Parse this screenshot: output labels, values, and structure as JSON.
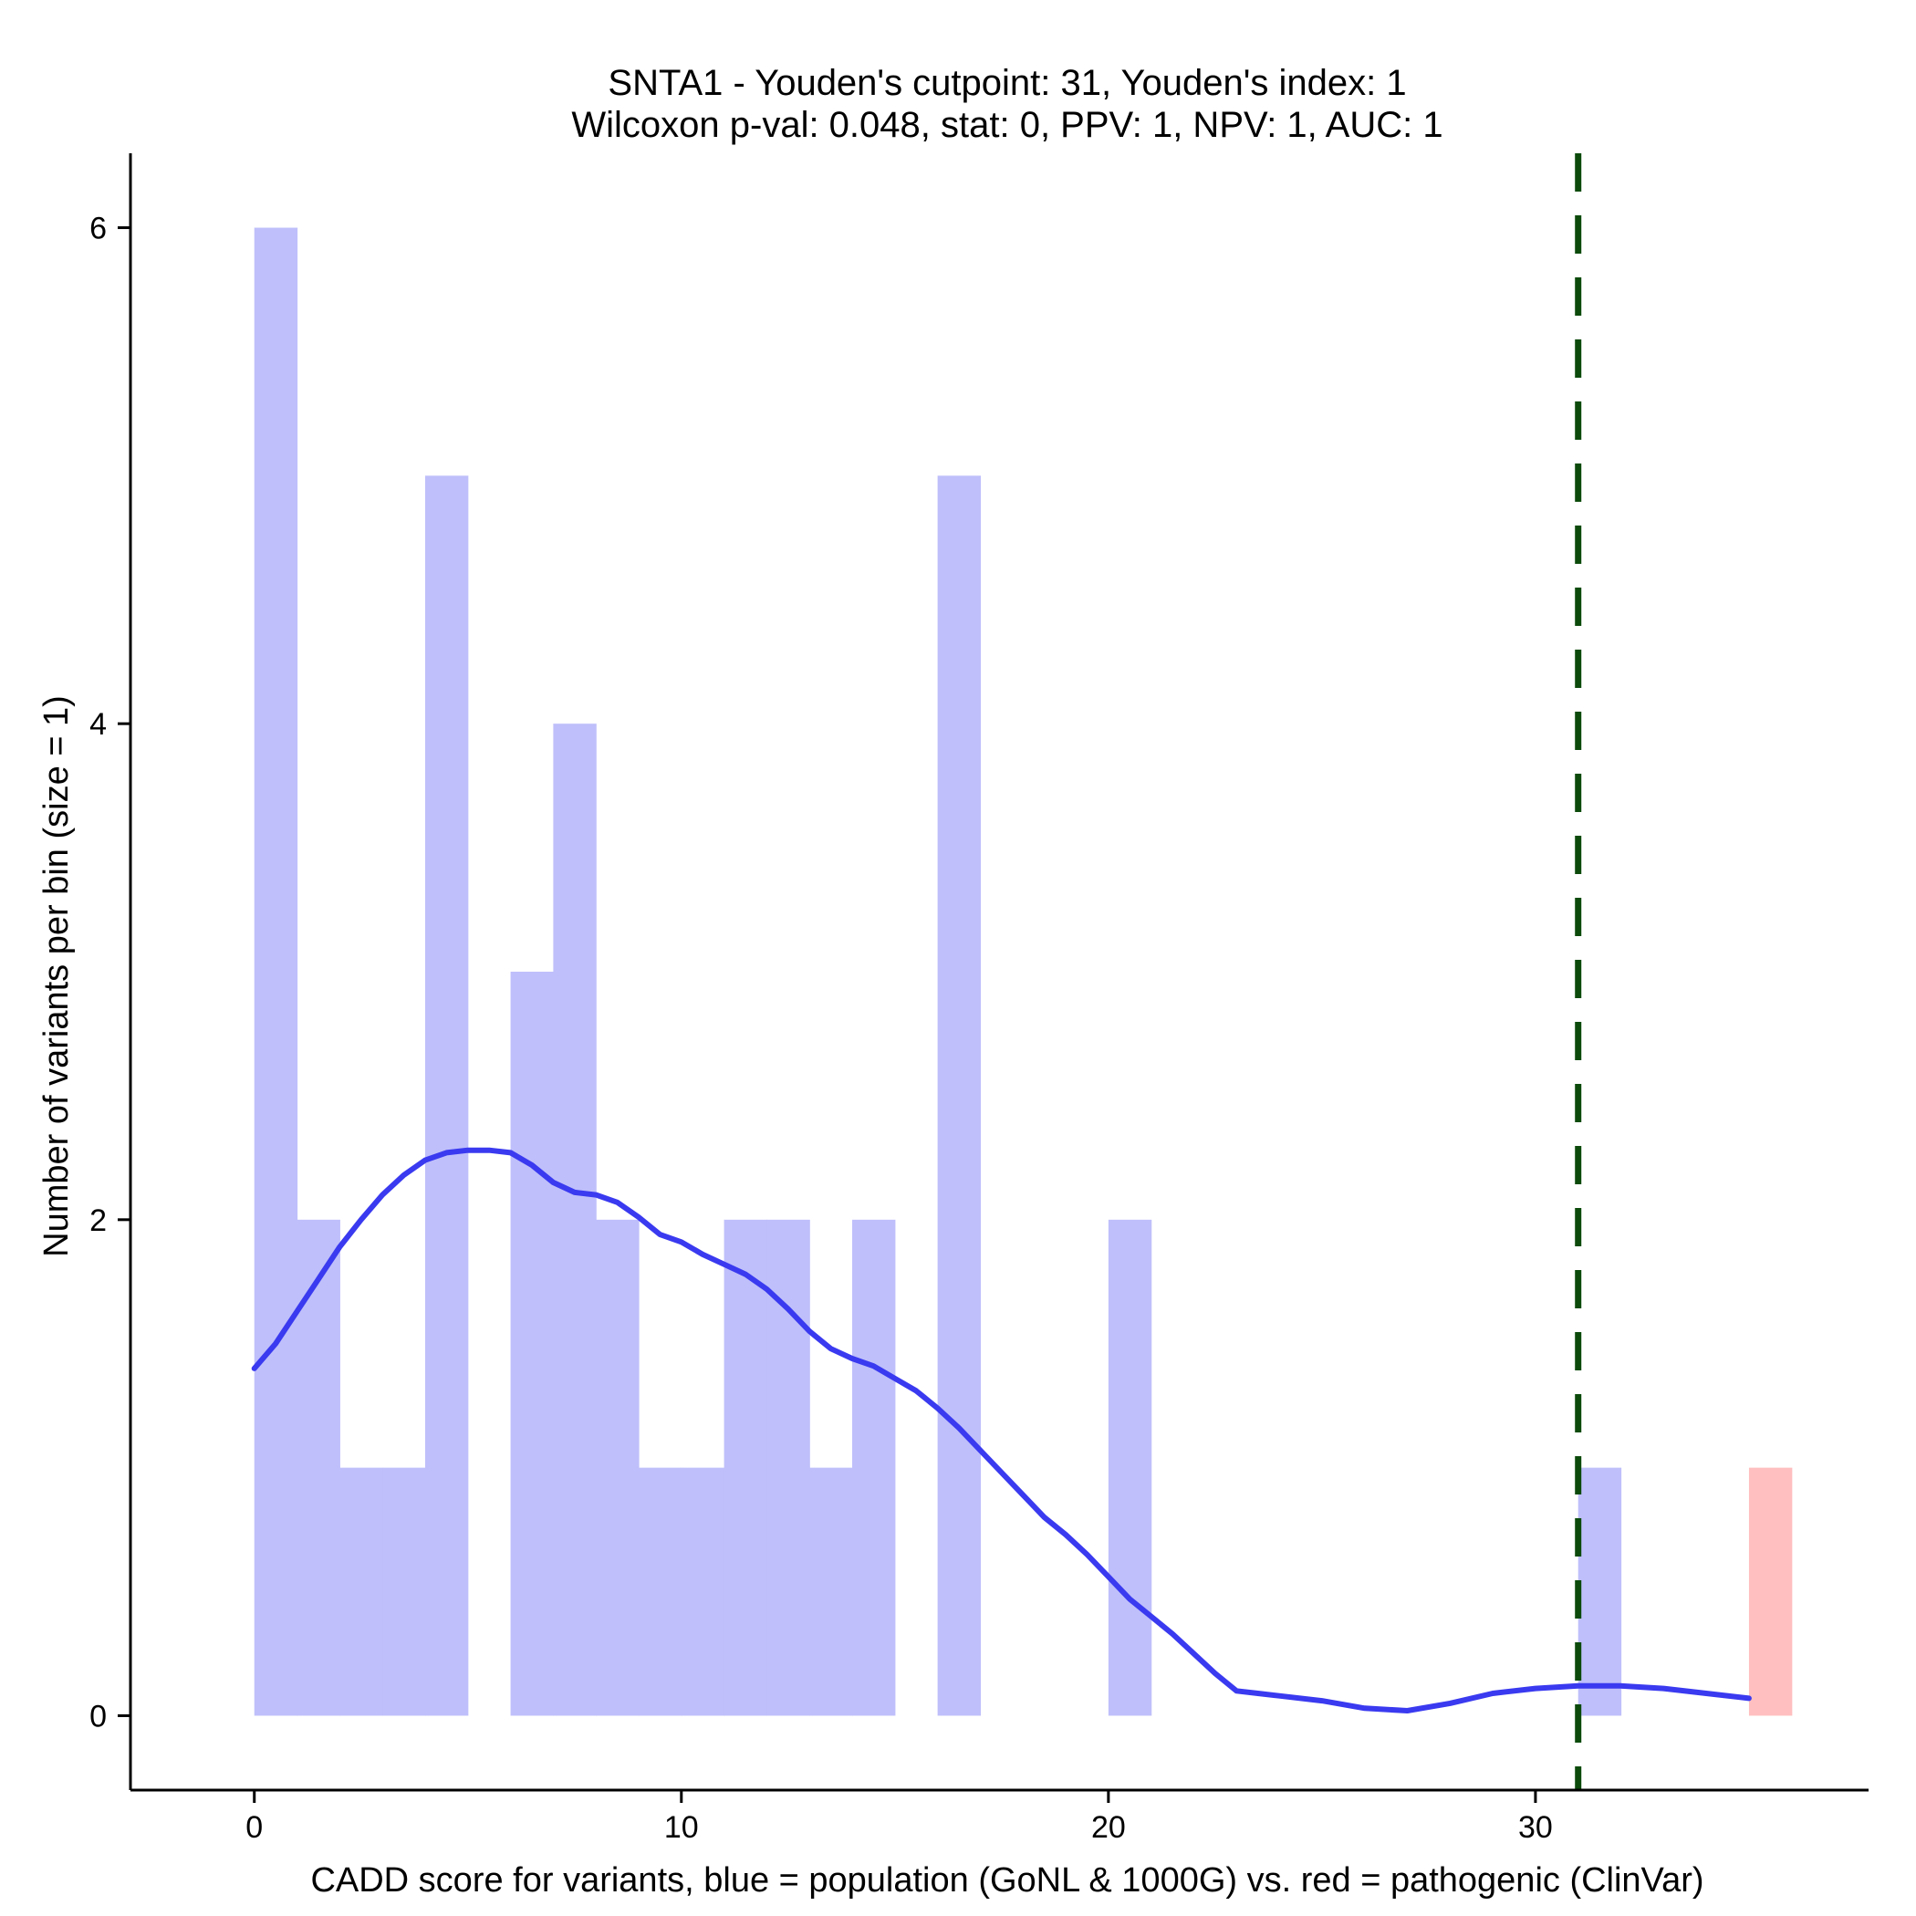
{
  "colors": {
    "population_bar": "#bfbffb",
    "pathogenic_bar": "#ffbfc0",
    "density_line": "#3a3af0",
    "cutpoint_line": "#0b4a0b",
    "axis": "#000000"
  },
  "chart_data": {
    "type": "bar",
    "title_line1": "SNTA1 - Youden's cutpoint: 31, Youden's index: 1",
    "title_line2": "Wilcoxon p-val: 0.048, stat: 0, PPV: 1, NPV: 1, AUC: 1",
    "xlabel": "CADD score for variants, blue = population (GoNL & 1000G) vs. red = pathogenic (ClinVar)",
    "ylabel": "Number of variants per bin (size = 1)",
    "xlim": [
      -2.9,
      37.8
    ],
    "ylim": [
      -0.3,
      6.3
    ],
    "x_ticks": [
      0,
      10,
      20,
      30
    ],
    "y_ticks": [
      0,
      2,
      4,
      6
    ],
    "bin_width": 1,
    "cutpoint": 31,
    "series": [
      {
        "name": "population",
        "bins": [
          {
            "start": 0,
            "count": 6
          },
          {
            "start": 1,
            "count": 2
          },
          {
            "start": 2,
            "count": 1
          },
          {
            "start": 3,
            "count": 1
          },
          {
            "start": 4,
            "count": 5
          },
          {
            "start": 6,
            "count": 3
          },
          {
            "start": 7,
            "count": 4
          },
          {
            "start": 8,
            "count": 2
          },
          {
            "start": 9,
            "count": 1
          },
          {
            "start": 10,
            "count": 1
          },
          {
            "start": 11,
            "count": 2
          },
          {
            "start": 12,
            "count": 2
          },
          {
            "start": 13,
            "count": 1
          },
          {
            "start": 14,
            "count": 2
          },
          {
            "start": 16,
            "count": 5
          },
          {
            "start": 20,
            "count": 2
          },
          {
            "start": 31,
            "count": 1
          }
        ]
      },
      {
        "name": "pathogenic",
        "bins": [
          {
            "start": 35,
            "count": 1
          }
        ]
      }
    ],
    "density": {
      "x": [
        0,
        0.5,
        1,
        1.5,
        2,
        2.5,
        3,
        3.5,
        4,
        4.5,
        5,
        5.5,
        6,
        6.5,
        7,
        7.5,
        8,
        8.5,
        9,
        9.5,
        10,
        10.5,
        11,
        11.5,
        12,
        12.5,
        13,
        13.5,
        14,
        14.5,
        15,
        15.5,
        16,
        16.5,
        17,
        17.5,
        18,
        18.5,
        19,
        19.5,
        20,
        20.5,
        21,
        21.5,
        22,
        22.5,
        23,
        23.5,
        24,
        25,
        26,
        27,
        28,
        29,
        30,
        31,
        32,
        33,
        34,
        35
      ],
      "y": [
        1.4,
        1.5,
        1.63,
        1.76,
        1.89,
        2.0,
        2.1,
        2.18,
        2.24,
        2.27,
        2.28,
        2.28,
        2.27,
        2.22,
        2.15,
        2.11,
        2.1,
        2.07,
        2.01,
        1.94,
        1.91,
        1.86,
        1.82,
        1.78,
        1.72,
        1.64,
        1.55,
        1.48,
        1.44,
        1.41,
        1.36,
        1.31,
        1.24,
        1.16,
        1.07,
        0.98,
        0.89,
        0.8,
        0.73,
        0.65,
        0.56,
        0.47,
        0.4,
        0.33,
        0.25,
        0.17,
        0.1,
        0.09,
        0.08,
        0.06,
        0.03,
        0.02,
        0.05,
        0.09,
        0.11,
        0.12,
        0.12,
        0.11,
        0.09,
        0.07
      ]
    }
  }
}
